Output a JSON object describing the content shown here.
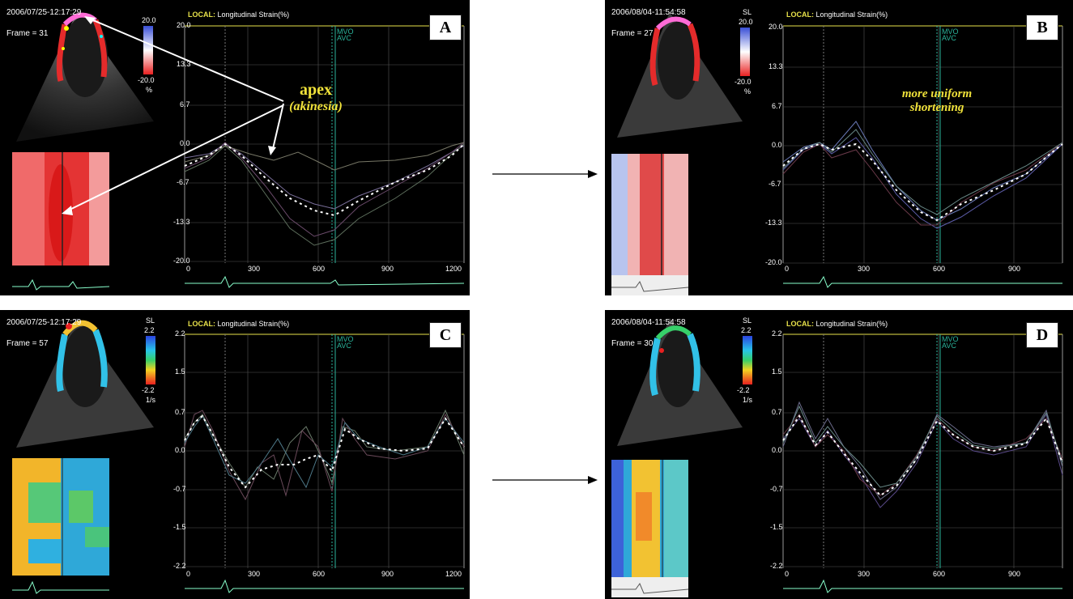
{
  "common": {
    "header_label": "LOCAL:",
    "header_text": "Longitudinal Strain(%)",
    "mvo": "MVO",
    "avc": "AVC"
  },
  "panels": {
    "A": {
      "letter": "A",
      "timestamp": "2006/07/25-12:17:29",
      "frame": "Frame = 31",
      "scale_top": "20.0",
      "scale_bottom": "-20.0",
      "scale_unit": "%",
      "y_ticks": [
        "20.0",
        "13.3",
        "6.7",
        "0.0",
        "-6.7",
        "-13.3",
        "-20.0"
      ],
      "x_ticks": [
        "0",
        "300",
        "600",
        "900",
        "1200"
      ]
    },
    "B": {
      "letter": "B",
      "timestamp": "2006/08/04-11:54:58",
      "frame": "Frame = 27",
      "scale_label": "SL",
      "scale_top": "20.0",
      "scale_bottom": "-20.0",
      "scale_unit": "%",
      "y_ticks": [
        "20.0",
        "13.3",
        "6.7",
        "0.0",
        "-6.7",
        "-13.3",
        "-20.0"
      ],
      "x_ticks": [
        "0",
        "300",
        "600",
        "900"
      ]
    },
    "C": {
      "letter": "C",
      "timestamp": "2006/07/25-12:17:29",
      "frame": "Frame = 57",
      "scale_label": "SL",
      "scale_top": "2.2",
      "scale_bottom": "-2.2",
      "scale_unit": "1/s",
      "y_ticks": [
        "2.2",
        "1.5",
        "0.7",
        "0.0",
        "-0.7",
        "-1.5",
        "-2.2"
      ],
      "x_ticks": [
        "0",
        "300",
        "600",
        "900",
        "1200"
      ]
    },
    "D": {
      "letter": "D",
      "timestamp": "2006/08/04-11:54:58",
      "frame": "Frame = 30",
      "scale_label": "SL",
      "scale_top": "2.2",
      "scale_bottom": "-2.2",
      "scale_unit": "1/s",
      "y_ticks": [
        "2.2",
        "1.5",
        "0.7",
        "0.0",
        "-0.7",
        "-1.5",
        "-2.2"
      ],
      "x_ticks": [
        "0",
        "300",
        "600",
        "900"
      ]
    }
  },
  "annotations": {
    "apex": "apex",
    "akinesia": "(akinesia)",
    "uniform_line1": "more uniform",
    "uniform_line2": "shortening"
  },
  "colors": {
    "annotation": "#f0e23a",
    "header": "#e8e24a",
    "mvo": "#2bb59c"
  }
}
